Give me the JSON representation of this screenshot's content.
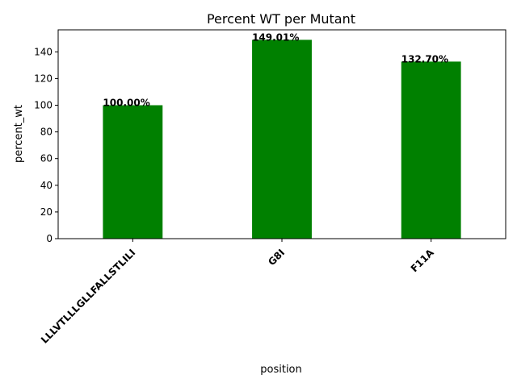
{
  "chart_data": {
    "type": "bar",
    "title": "Percent WT per Mutant",
    "xlabel": "position",
    "ylabel": "percent_wt",
    "categories": [
      "LLLVTLLLGLLFALLSTLILI",
      "G8I",
      "F11A"
    ],
    "values": [
      100.0,
      149.01,
      132.7
    ],
    "data_labels": [
      "100.00%",
      "149.01%",
      "132.70%"
    ],
    "ylim": [
      0,
      156.5
    ],
    "yticks": [
      0,
      20,
      40,
      60,
      80,
      100,
      120,
      140
    ],
    "bar_color": "#008000",
    "grid": false,
    "legend": "none"
  }
}
